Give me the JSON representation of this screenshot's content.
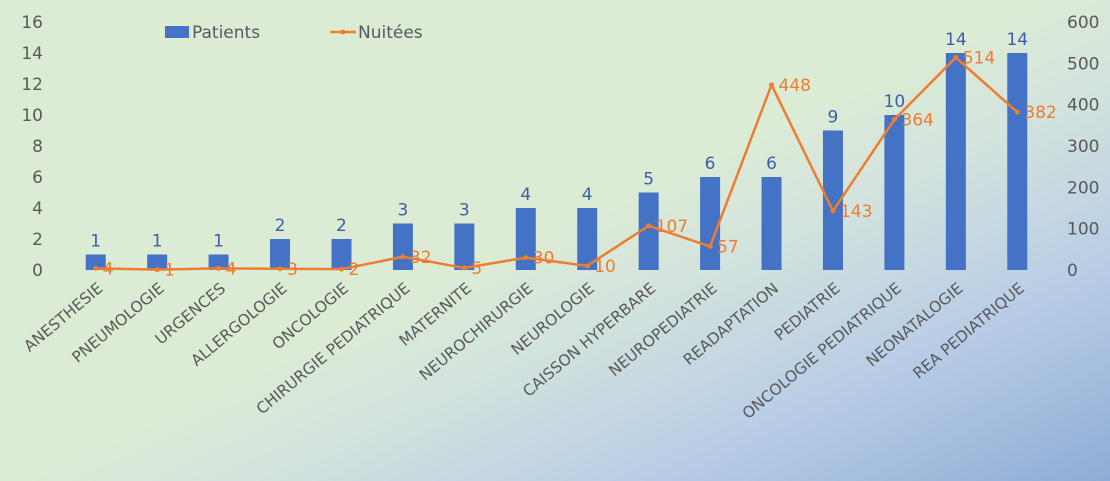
{
  "chart_data": {
    "type": "bar",
    "categories": [
      "ANESTHESIE",
      "PNEUMOLOGIE",
      "URGENCES",
      "ALLERGOLOGIE",
      "ONCOLOGIE",
      "CHIRURGIE PEDIATRIQUE",
      "MATERNITE",
      "NEUROCHIRURGIE",
      "NEUROLOGIE",
      "CAISSON HYPERBARE",
      "NEUROPEDIATRIE",
      "READAPTATION",
      "PEDIATRIE",
      "ONCOLOGIE PEDIATRIQUE",
      "NEONATALOGIE",
      "REA PEDIATRIQUE"
    ],
    "series": [
      {
        "name": "Patients",
        "type": "bar",
        "axis": "left",
        "color": "#4472c4",
        "values": [
          1,
          1,
          1,
          2,
          2,
          3,
          3,
          4,
          4,
          5,
          6,
          6,
          9,
          10,
          14,
          14
        ]
      },
      {
        "name": "Nuitées",
        "type": "line",
        "axis": "right",
        "color": "#ed7d31",
        "values": [
          4,
          1,
          4,
          3,
          2,
          32,
          5,
          30,
          10,
          107,
          57,
          448,
          143,
          364,
          514,
          382
        ]
      }
    ],
    "y_left": {
      "min": 0,
      "max": 16,
      "ticks": [
        "0",
        "2",
        "4",
        "6",
        "8",
        "10",
        "12",
        "14",
        "16"
      ]
    },
    "y_right": {
      "min": 0,
      "max": 600,
      "ticks": [
        "0",
        "100",
        "200",
        "300",
        "400",
        "500",
        "600"
      ]
    },
    "data_labels": true,
    "legend": "top-left",
    "grid": false
  }
}
